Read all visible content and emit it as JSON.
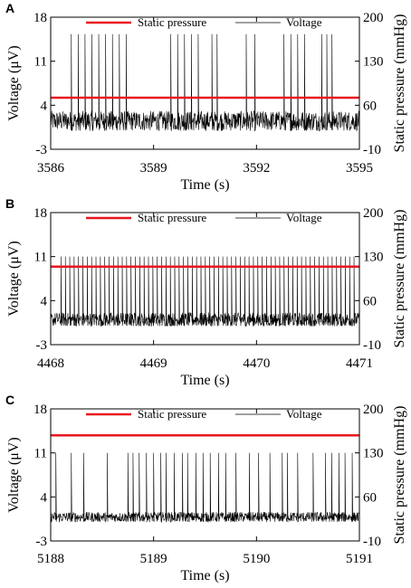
{
  "colors": {
    "pressure": "#e8171f",
    "voltage": "#000000",
    "axis": "#000000"
  },
  "chart_data": [
    {
      "type": "line",
      "panel_label": "A",
      "xlabel": "Time (s)",
      "ylabel": "Voltage (μV)",
      "y2label": "Static pressure (mmHg)",
      "xlim": [
        3586,
        3595
      ],
      "xticks": [
        "3586",
        "3589",
        "3592",
        "3595"
      ],
      "xtick_values": [
        3586,
        3589,
        3592,
        3595
      ],
      "ylim": [
        -3,
        18
      ],
      "yticks": [
        "-3",
        "4",
        "11",
        "18"
      ],
      "ytick_values": [
        -3,
        4,
        11,
        18
      ],
      "y2lim": [
        -10,
        200
      ],
      "y2ticks": [
        "-10",
        "60",
        "130",
        "200"
      ],
      "y2tick_values": [
        -10,
        60,
        130,
        200
      ],
      "legend": {
        "placement": "top",
        "entries": [
          "Static pressure",
          "Voltage"
        ]
      },
      "series": [
        {
          "name": "Static pressure",
          "axis": "right",
          "x": [
            3586,
            3595
          ],
          "values": [
            72,
            72
          ]
        },
        {
          "name": "Voltage",
          "axis": "left",
          "baseline_mean": 1.5,
          "noise_amplitude": 1.6,
          "spike_peak": 15.3,
          "spike_bursts": [
            {
              "x": [
                3586.6,
                3586.8,
                3587.0,
                3587.2,
                3587.4,
                3587.6,
                3587.8,
                3588.0,
                3588.2
              ]
            },
            {
              "x": [
                3589.5,
                3589.7,
                3589.9,
                3590.1,
                3590.3
              ]
            },
            {
              "x": [
                3590.7,
                3590.85
              ]
            },
            {
              "x": [
                3591.7,
                3591.95
              ]
            },
            {
              "x": [
                3592.8,
                3593.0,
                3593.2,
                3593.4
              ]
            },
            {
              "x": [
                3593.9,
                3594.05,
                3594.2
              ]
            }
          ]
        }
      ]
    },
    {
      "type": "line",
      "panel_label": "B",
      "xlabel": "Time (s)",
      "ylabel": "Voltage (μV)",
      "y2label": "Static pressure (mmHg)",
      "xlim": [
        4468,
        4471
      ],
      "xticks": [
        "4468",
        "4469",
        "4470",
        "4471"
      ],
      "xtick_values": [
        4468,
        4469,
        4470,
        4471
      ],
      "ylim": [
        -3,
        18
      ],
      "yticks": [
        "-3",
        "4",
        "11",
        "18"
      ],
      "ytick_values": [
        -3,
        4,
        11,
        18
      ],
      "y2lim": [
        -10,
        200
      ],
      "y2ticks": [
        "-10",
        "60",
        "130",
        "200"
      ],
      "y2tick_values": [
        -10,
        60,
        130,
        200
      ],
      "legend": {
        "placement": "top",
        "entries": [
          "Static pressure",
          "Voltage"
        ]
      },
      "series": [
        {
          "name": "Static pressure",
          "axis": "right",
          "x": [
            4468,
            4471
          ],
          "values": [
            114,
            114
          ]
        },
        {
          "name": "Voltage",
          "axis": "left",
          "baseline_mean": 1.0,
          "noise_amplitude": 1.1,
          "spike_peak": 11.0,
          "spike_interval": 0.0425,
          "spike_start": 4468.1,
          "spike_end": 4470.95
        }
      ]
    },
    {
      "type": "line",
      "panel_label": "C",
      "xlabel": "Time (s)",
      "ylabel": "Voltage (μV)",
      "y2label": "Static pressure (mmHg)",
      "xlim": [
        5188,
        5191
      ],
      "xticks": [
        "5188",
        "5189",
        "5190",
        "5191"
      ],
      "xtick_values": [
        5188,
        5189,
        5190,
        5191
      ],
      "ylim": [
        -3,
        18
      ],
      "yticks": [
        "-3",
        "4",
        "11",
        "18"
      ],
      "ytick_values": [
        -3,
        4,
        11,
        18
      ],
      "y2lim": [
        -10,
        200
      ],
      "y2ticks": [
        "-10",
        "60",
        "130",
        "200"
      ],
      "y2tick_values": [
        -10,
        60,
        130,
        200
      ],
      "legend": {
        "placement": "top",
        "entries": [
          "Static pressure",
          "Voltage"
        ]
      },
      "series": [
        {
          "name": "Static pressure",
          "axis": "right",
          "x": [
            5188,
            5191
          ],
          "values": [
            158,
            158
          ]
        },
        {
          "name": "Voltage",
          "axis": "left",
          "baseline_mean": 0.8,
          "noise_amplitude": 0.8,
          "spike_peak": 11.0,
          "spike_x": [
            5188.05,
            5188.2,
            5188.32,
            5188.55,
            5188.75,
            5188.8,
            5188.86,
            5188.93,
            5189.0,
            5189.07,
            5189.12,
            5189.2,
            5189.28,
            5189.33,
            5189.41,
            5189.48,
            5189.55,
            5189.63,
            5189.7,
            5189.8,
            5189.93,
            5190.02,
            5190.13,
            5190.25,
            5190.3,
            5190.4,
            5190.55,
            5190.67,
            5190.73,
            5190.8,
            5190.86,
            5190.93
          ]
        }
      ]
    }
  ]
}
